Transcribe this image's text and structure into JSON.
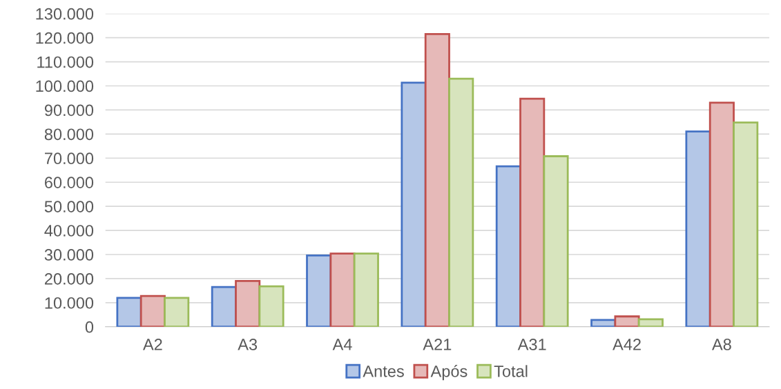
{
  "chart_data": {
    "type": "bar",
    "categories": [
      "A2",
      "A3",
      "A4",
      "A21",
      "A31",
      "A42",
      "A8"
    ],
    "series": [
      {
        "name": "Antes",
        "color": "#4472c4",
        "values": [
          12000,
          16500,
          29600,
          101300,
          66600,
          2800,
          81100
        ]
      },
      {
        "name": "Após",
        "color": "#c0504d",
        "values": [
          12800,
          19000,
          30400,
          121500,
          94700,
          4300,
          93000
        ]
      },
      {
        "name": "Total",
        "color": "#9bbb59",
        "values": [
          12000,
          16800,
          30400,
          103000,
          70800,
          3100,
          84800
        ]
      }
    ],
    "ylim": [
      0,
      130000
    ],
    "yticks": [
      0,
      {
        "value": 10000,
        "label": "10.000"
      },
      {
        "value": 20000,
        "label": "20.000"
      },
      {
        "value": 30000,
        "label": "30.000"
      },
      {
        "value": 40000,
        "label": "40.000"
      },
      {
        "value": 50000,
        "label": "50.000"
      },
      {
        "value": 60000,
        "label": "60.000"
      },
      {
        "value": 70000,
        "label": "70.000"
      },
      {
        "value": 80000,
        "label": "80.000"
      },
      {
        "value": 90000,
        "label": "90.000"
      },
      {
        "value": 100000,
        "label": "100.000"
      },
      {
        "value": 110000,
        "label": "110.000"
      },
      {
        "value": 120000,
        "label": "120.000"
      },
      {
        "value": 130000,
        "label": "130.000"
      }
    ],
    "grid": "y",
    "legend": "bottom"
  }
}
